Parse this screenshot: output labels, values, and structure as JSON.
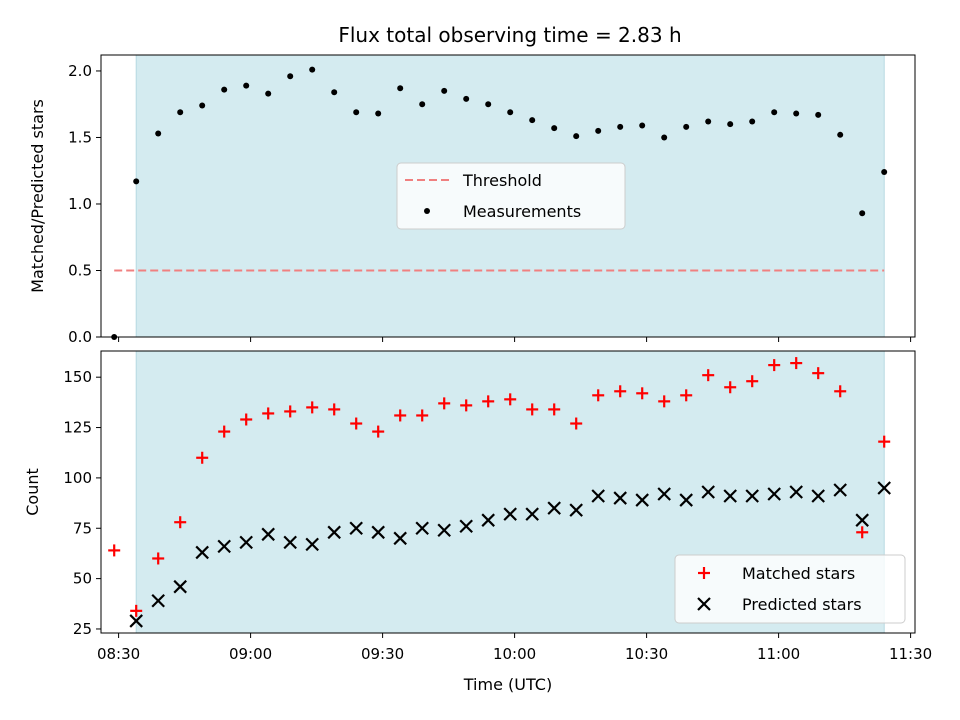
{
  "chart_data": [
    {
      "type": "scatter",
      "title": "Flux total observing time = 2.83 h",
      "ylabel": "Matched/Predicted stars",
      "xlim": [
        "08:26",
        "11:31"
      ],
      "ylim": [
        0,
        2.12
      ],
      "yticks": [
        "0.0",
        "0.5",
        "1.0",
        "1.5",
        "2.0"
      ],
      "observing_window": [
        "08:34",
        "11:24"
      ],
      "legend_position": "center",
      "series": [
        {
          "name": "Threshold",
          "style": "dashed-line",
          "color": "#f08080",
          "x": [
            "08:29",
            "11:24"
          ],
          "y": [
            0.5,
            0.5
          ]
        },
        {
          "name": "Measurements",
          "style": "dot",
          "color": "#000000",
          "x": [
            "08:29",
            "08:34",
            "08:39",
            "08:44",
            "08:49",
            "08:54",
            "08:59",
            "09:04",
            "09:09",
            "09:14",
            "09:19",
            "09:24",
            "09:29",
            "09:34",
            "09:39",
            "09:44",
            "09:49",
            "09:54",
            "09:59",
            "10:04",
            "10:09",
            "10:14",
            "10:19",
            "10:24",
            "10:29",
            "10:34",
            "10:39",
            "10:44",
            "10:49",
            "10:54",
            "10:59",
            "11:04",
            "11:09",
            "11:14",
            "11:19",
            "11:24"
          ],
          "y": [
            0.0,
            1.17,
            1.53,
            1.69,
            1.74,
            1.86,
            1.89,
            1.83,
            1.96,
            2.01,
            1.84,
            1.69,
            1.68,
            1.87,
            1.75,
            1.85,
            1.79,
            1.75,
            1.69,
            1.63,
            1.57,
            1.51,
            1.55,
            1.58,
            1.59,
            1.5,
            1.58,
            1.62,
            1.6,
            1.62,
            1.69,
            1.68,
            1.67,
            1.52,
            0.93,
            1.24
          ]
        }
      ]
    },
    {
      "type": "scatter",
      "xlabel": "Time (UTC)",
      "ylabel": "Count",
      "xlim": [
        "08:26",
        "11:31"
      ],
      "ylim": [
        23,
        163
      ],
      "yticks": [
        "25",
        "50",
        "75",
        "100",
        "125",
        "150"
      ],
      "xticks": [
        "08:30",
        "09:00",
        "09:30",
        "10:00",
        "10:30",
        "11:00",
        "11:30"
      ],
      "observing_window": [
        "08:34",
        "11:24"
      ],
      "legend_position": "lower right",
      "series": [
        {
          "name": "Matched stars",
          "style": "plus",
          "color": "#ff0000",
          "x": [
            "08:29",
            "08:34",
            "08:39",
            "08:44",
            "08:49",
            "08:54",
            "08:59",
            "09:04",
            "09:09",
            "09:14",
            "09:19",
            "09:24",
            "09:29",
            "09:34",
            "09:39",
            "09:44",
            "09:49",
            "09:54",
            "09:59",
            "10:04",
            "10:09",
            "10:14",
            "10:19",
            "10:24",
            "10:29",
            "10:34",
            "10:39",
            "10:44",
            "10:49",
            "10:54",
            "10:59",
            "11:04",
            "11:09",
            "11:14",
            "11:19",
            "11:24"
          ],
          "y": [
            64,
            34,
            60,
            78,
            110,
            123,
            129,
            132,
            133,
            135,
            134,
            127,
            123,
            131,
            131,
            137,
            136,
            138,
            139,
            134,
            134,
            127,
            141,
            143,
            142,
            138,
            141,
            151,
            145,
            148,
            156,
            157,
            152,
            143,
            73,
            118
          ]
        },
        {
          "name": "Predicted stars",
          "style": "x",
          "color": "#000000",
          "x": [
            "08:34",
            "08:39",
            "08:44",
            "08:49",
            "08:54",
            "08:59",
            "09:04",
            "09:09",
            "09:14",
            "09:19",
            "09:24",
            "09:29",
            "09:34",
            "09:39",
            "09:44",
            "09:49",
            "09:54",
            "09:59",
            "10:04",
            "10:09",
            "10:14",
            "10:19",
            "10:24",
            "10:29",
            "10:34",
            "10:39",
            "10:44",
            "10:49",
            "10:54",
            "10:59",
            "11:04",
            "11:09",
            "11:14",
            "11:19",
            "11:24"
          ],
          "y": [
            29,
            39,
            46,
            63,
            66,
            68,
            72,
            68,
            67,
            73,
            75,
            73,
            70,
            75,
            74,
            76,
            79,
            82,
            82,
            85,
            84,
            91,
            90,
            89,
            92,
            89,
            93,
            91,
            91,
            92,
            93,
            91,
            94,
            79,
            95
          ]
        }
      ]
    }
  ],
  "colors": {
    "observing_window_fill": "#d4ebf0",
    "observing_window_edge": "#b6d9e2"
  }
}
